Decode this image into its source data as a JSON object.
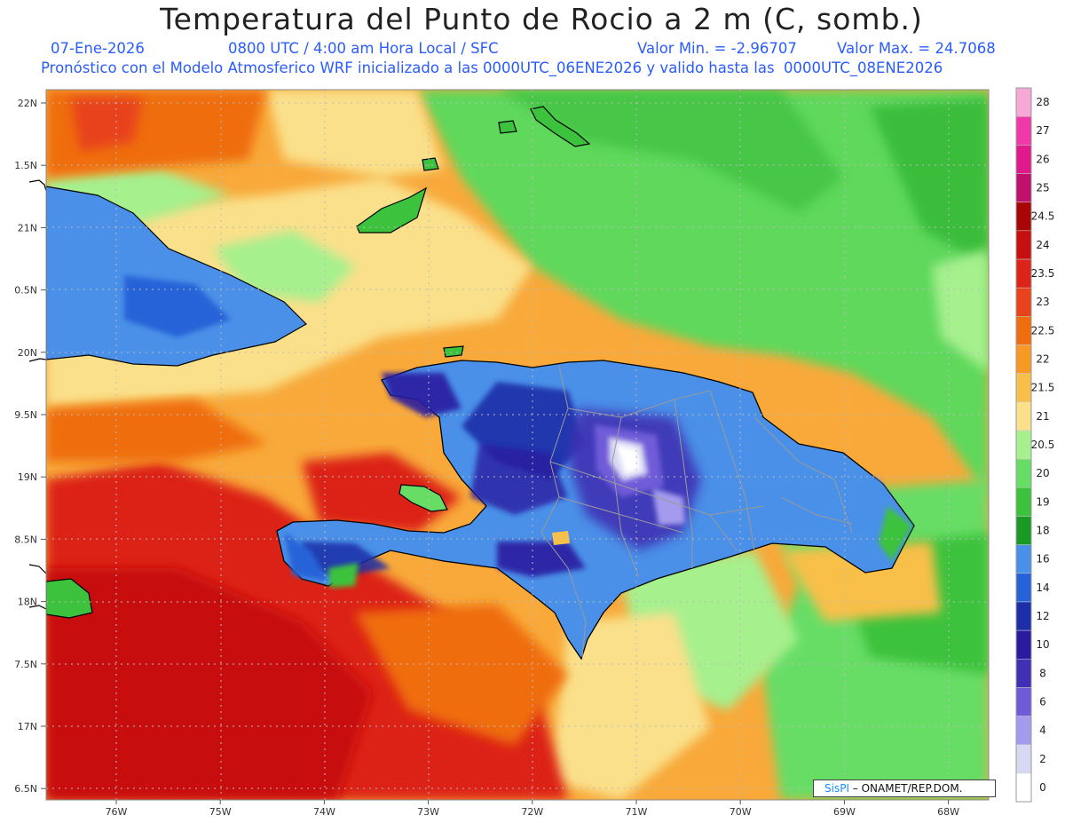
{
  "title": "Temperatura del Punto de Rocio a 2 m (C, somb.)",
  "subtitle": {
    "date": "07-Ene-2026",
    "time": "0800 UTC / 4:00 am Hora Local / SFC",
    "min": "Valor Min. = -2.96707",
    "max": "Valor Max. = 24.7068",
    "model": "Pronóstico con el Modelo Atmosferico WRF inicializado a las 0000UTC_06ENE2026 y valido hasta las  0000UTC_08ENE2026"
  },
  "credit": {
    "logo": "SisPI",
    "text": " – ONAMET/REP.DOM."
  },
  "axes": {
    "lat_labels": [
      "22N",
      "1.5N",
      "21N",
      "0.5N",
      "20N",
      "9.5N",
      "19N",
      "8.5N",
      "18N",
      "7.5N",
      "17N",
      "6.5N"
    ],
    "lon_labels": [
      "76W",
      "75W",
      "74W",
      "73W",
      "72W",
      "71W",
      "70W",
      "69W",
      "68W"
    ]
  },
  "colorbar": [
    {
      "label": "0",
      "color": "#ffffff"
    },
    {
      "label": "2",
      "color": "#d8d8f4"
    },
    {
      "label": "4",
      "color": "#a59bee"
    },
    {
      "label": "6",
      "color": "#6f5bd8"
    },
    {
      "label": "8",
      "color": "#4130b4"
    },
    {
      "label": "10",
      "color": "#2a1aa0"
    },
    {
      "label": "12",
      "color": "#1d2fa8"
    },
    {
      "label": "14",
      "color": "#2763d8"
    },
    {
      "label": "16",
      "color": "#4a90e8"
    },
    {
      "label": "18",
      "color": "#1a9a25"
    },
    {
      "label": "19",
      "color": "#3cc23c"
    },
    {
      "label": "20",
      "color": "#68dd66"
    },
    {
      "label": "20.5",
      "color": "#a6f08e"
    },
    {
      "label": "21",
      "color": "#fae08a"
    },
    {
      "label": "21.5",
      "color": "#f8bf4a"
    },
    {
      "label": "22",
      "color": "#f79a25"
    },
    {
      "label": "22.5",
      "color": "#ef6d0e"
    },
    {
      "label": "23",
      "color": "#e8431c"
    },
    {
      "label": "23.5",
      "color": "#dc2418"
    },
    {
      "label": "24",
      "color": "#c70f0f"
    },
    {
      "label": "24.5",
      "color": "#a80505"
    },
    {
      "label": "25",
      "color": "#c0106e"
    },
    {
      "label": "26",
      "color": "#e01a8a"
    },
    {
      "label": "27",
      "color": "#f038a8"
    },
    {
      "label": "28",
      "color": "#f6a8d6"
    }
  ]
}
